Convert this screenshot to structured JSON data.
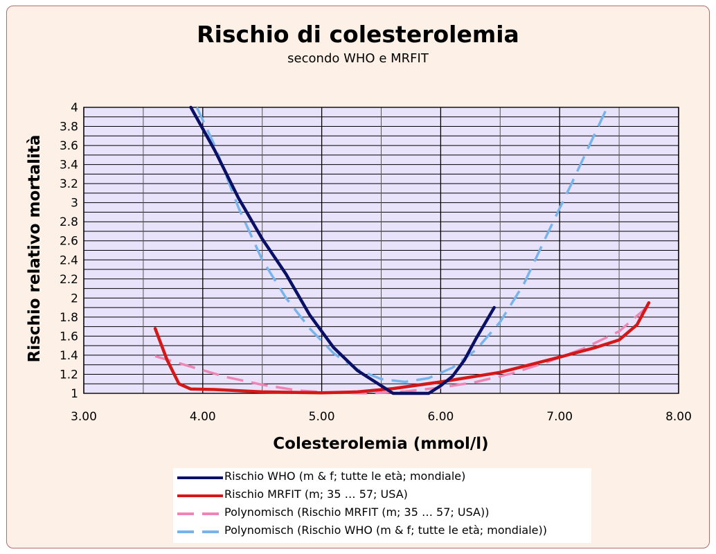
{
  "chart_data": {
    "type": "line",
    "title": "Rischio di colesterolemia",
    "subtitle": "secondo WHO e MRFIT",
    "xlabel": "Colesterolemia (mmol/l)",
    "ylabel": "Rischio relativo mortalità",
    "xlim": [
      3.0,
      8.0
    ],
    "ylim": [
      1.0,
      4.0
    ],
    "x_ticks": [
      "3.00",
      "4.00",
      "5.00",
      "6.00",
      "7.00",
      "8.00"
    ],
    "y_ticks": [
      "1",
      "1.2",
      "1.4",
      "1.6",
      "1.8",
      "2",
      "2.2",
      "2.4",
      "2.6",
      "2.8",
      "3",
      "3.2",
      "3.4",
      "3.6",
      "3.8",
      "4"
    ],
    "grid": true,
    "legend_position": "bottom",
    "series": [
      {
        "name": "Rischio WHO (m & f; tutte le età; mondiale)",
        "color": "#0a1066",
        "style": "solid",
        "points": [
          [
            3.9,
            4.0
          ],
          [
            4.1,
            3.55
          ],
          [
            4.3,
            3.05
          ],
          [
            4.5,
            2.62
          ],
          [
            4.7,
            2.25
          ],
          [
            4.9,
            1.82
          ],
          [
            5.1,
            1.48
          ],
          [
            5.3,
            1.24
          ],
          [
            5.5,
            1.08
          ],
          [
            5.6,
            1.0
          ],
          [
            5.9,
            1.0
          ],
          [
            6.0,
            1.08
          ],
          [
            6.1,
            1.18
          ],
          [
            6.2,
            1.35
          ],
          [
            6.3,
            1.58
          ],
          [
            6.45,
            1.9
          ]
        ]
      },
      {
        "name": "Rischio MRFIT (m; 35 … 57; USA)",
        "color": "#d41818",
        "style": "solid",
        "points": [
          [
            3.6,
            1.68
          ],
          [
            3.7,
            1.35
          ],
          [
            3.8,
            1.1
          ],
          [
            3.9,
            1.045
          ],
          [
            4.1,
            1.04
          ],
          [
            4.5,
            1.015
          ],
          [
            5.0,
            1.005
          ],
          [
            5.3,
            1.015
          ],
          [
            5.6,
            1.05
          ],
          [
            6.0,
            1.12
          ],
          [
            6.5,
            1.22
          ],
          [
            7.0,
            1.38
          ],
          [
            7.3,
            1.48
          ],
          [
            7.5,
            1.56
          ],
          [
            7.65,
            1.72
          ],
          [
            7.75,
            1.95
          ]
        ]
      },
      {
        "name": "Polynomisch (Rischio MRFIT (m; 35 … 57; USA))",
        "color": "#ee85b4",
        "style": "dashed",
        "points": [
          [
            3.6,
            1.39
          ],
          [
            3.9,
            1.28
          ],
          [
            4.2,
            1.17
          ],
          [
            4.5,
            1.09
          ],
          [
            4.8,
            1.03
          ],
          [
            5.1,
            1.005
          ],
          [
            5.4,
            1.0
          ],
          [
            5.7,
            1.02
          ],
          [
            6.0,
            1.06
          ],
          [
            6.3,
            1.12
          ],
          [
            6.6,
            1.21
          ],
          [
            6.9,
            1.33
          ],
          [
            7.2,
            1.47
          ],
          [
            7.5,
            1.65
          ],
          [
            7.75,
            1.92
          ]
        ]
      },
      {
        "name": "Polynomisch (Rischio WHO (m & f; tutte le età; mondiale))",
        "color": "#78b4ec",
        "style": "dashed",
        "points": [
          [
            3.95,
            4.0
          ],
          [
            4.1,
            3.6
          ],
          [
            4.3,
            2.95
          ],
          [
            4.5,
            2.4
          ],
          [
            4.7,
            2.0
          ],
          [
            4.9,
            1.68
          ],
          [
            5.1,
            1.42
          ],
          [
            5.3,
            1.25
          ],
          [
            5.5,
            1.15
          ],
          [
            5.7,
            1.12
          ],
          [
            5.9,
            1.16
          ],
          [
            6.1,
            1.27
          ],
          [
            6.3,
            1.46
          ],
          [
            6.5,
            1.75
          ],
          [
            6.7,
            2.15
          ],
          [
            6.9,
            2.68
          ],
          [
            7.1,
            3.2
          ],
          [
            7.25,
            3.6
          ],
          [
            7.4,
            4.0
          ]
        ]
      }
    ]
  }
}
